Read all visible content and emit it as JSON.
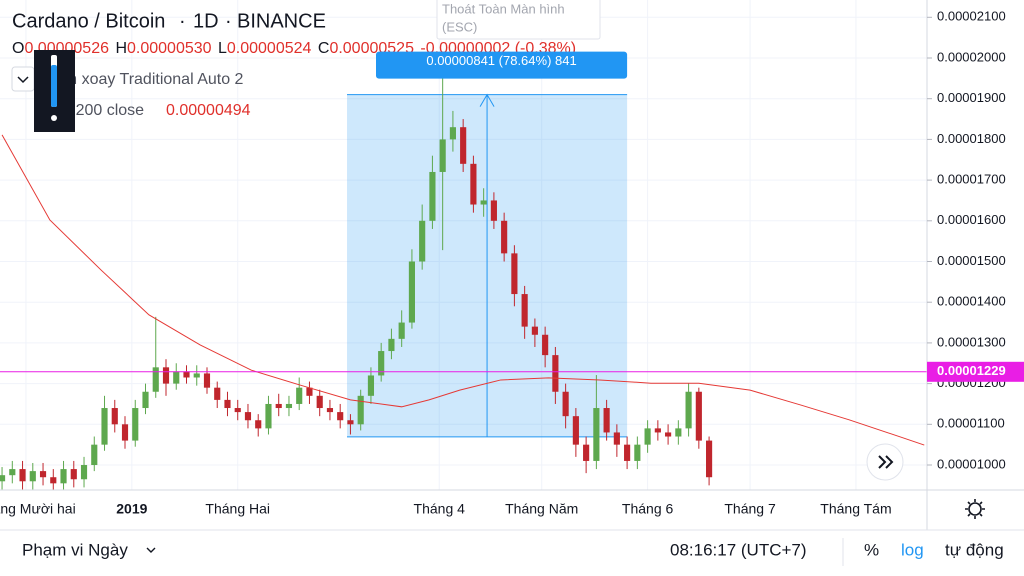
{
  "chart_data": {
    "type": "candlestick",
    "title": "Cardano / Bitcoin",
    "interval": "1D",
    "exchange": "BINANCE",
    "x": [
      -7,
      -4,
      -1,
      2,
      5,
      8,
      11,
      14,
      17,
      20,
      23,
      26,
      29,
      32,
      35,
      38,
      41,
      44,
      47,
      50,
      53,
      56,
      59,
      62,
      65,
      68,
      71,
      74,
      77,
      80,
      83,
      86,
      89,
      92,
      95,
      98,
      101,
      104,
      107,
      110,
      113,
      116,
      119,
      122,
      125,
      128,
      131,
      134,
      137,
      140,
      143,
      146,
      149,
      152,
      155,
      158,
      161,
      164,
      167,
      170,
      173,
      176,
      179,
      182,
      185,
      188,
      191,
      194,
      197,
      200
    ],
    "open": [
      9.6e-06,
      9.75e-06,
      9.9e-06,
      9.6e-06,
      9.85e-06,
      9.7e-06,
      9.55e-06,
      9.9e-06,
      9.65e-06,
      1e-05,
      1.05e-05,
      1.14e-05,
      1.1e-05,
      1.06e-05,
      1.14e-05,
      1.18e-05,
      1.24e-05,
      1.2e-05,
      1.23e-05,
      1.215e-05,
      1.225e-05,
      1.19e-05,
      1.16e-05,
      1.14e-05,
      1.13e-05,
      1.11e-05,
      1.09e-05,
      1.15e-05,
      1.14e-05,
      1.15e-05,
      1.19e-05,
      1.17e-05,
      1.14e-05,
      1.13e-05,
      1.11e-05,
      1.1e-05,
      1.17e-05,
      1.22e-05,
      1.28e-05,
      1.31e-05,
      1.35e-05,
      1.5e-05,
      1.6e-05,
      1.72e-05,
      1.8e-05,
      1.83e-05,
      1.74e-05,
      1.64e-05,
      1.65e-05,
      1.6e-05,
      1.52e-05,
      1.42e-05,
      1.34e-05,
      1.32e-05,
      1.27e-05,
      1.18e-05,
      1.12e-05,
      1.05e-05,
      1.01e-05,
      1.14e-05,
      1.08e-05,
      1.05e-05,
      1.01e-05,
      1.05e-05,
      1.09e-05,
      1.08e-05,
      1.07e-05,
      1.09e-05,
      1.18e-05,
      1.06e-05
    ],
    "high": [
      9.95e-06,
      1.01e-05,
      1.01e-05,
      1.005e-05,
      1.005e-05,
      9.9e-06,
      1.01e-05,
      1.01e-05,
      1.02e-05,
      1.07e-05,
      1.17e-05,
      1.16e-05,
      1.12e-05,
      1.16e-05,
      1.2e-05,
      1.364e-05,
      1.26e-05,
      1.25e-05,
      1.245e-05,
      1.245e-05,
      1.24e-05,
      1.205e-05,
      1.18e-05,
      1.16e-05,
      1.15e-05,
      1.125e-05,
      1.17e-05,
      1.175e-05,
      1.17e-05,
      1.215e-05,
      1.205e-05,
      1.185e-05,
      1.16e-05,
      1.15e-05,
      1.125e-05,
      1.185e-05,
      1.24e-05,
      1.3e-05,
      1.335e-05,
      1.38e-05,
      1.53e-05,
      1.64e-05,
      1.76e-05,
      1.958e-05,
      1.87e-05,
      1.85e-05,
      1.76e-05,
      1.68e-05,
      1.67e-05,
      1.62e-05,
      1.54e-05,
      1.44e-05,
      1.36e-05,
      1.34e-05,
      1.29e-05,
      1.2e-05,
      1.14e-05,
      1.07e-05,
      1.221e-05,
      1.16e-05,
      1.1e-05,
      1.07e-05,
      1.07e-05,
      1.11e-05,
      1.11e-05,
      1.1e-05,
      1.11e-05,
      1.201e-05,
      1.19e-05,
      1.07e-05
    ],
    "low": [
      9.4e-06,
      9.55e-06,
      9.4e-06,
      9.4e-06,
      9.5e-06,
      9.35e-06,
      9.4e-06,
      9.45e-06,
      9.45e-06,
      9.85e-06,
      1.035e-05,
      1.08e-05,
      1.04e-05,
      1.045e-05,
      1.125e-05,
      1.165e-05,
      1.17e-05,
      1.185e-05,
      1.2e-05,
      1.195e-05,
      1.175e-05,
      1.14e-05,
      1.12e-05,
      1.11e-05,
      1.09e-05,
      1.07e-05,
      1.075e-05,
      1.12e-05,
      1.12e-05,
      1.135e-05,
      1.15e-05,
      1.12e-05,
      1.11e-05,
      1.09e-05,
      1.075e-05,
      1.085e-05,
      1.15e-05,
      1.205e-05,
      1.26e-05,
      1.29e-05,
      1.335e-05,
      1.48e-05,
      1.58e-05,
      1.528e-05,
      1.77e-05,
      1.72e-05,
      1.62e-05,
      1.61e-05,
      1.58e-05,
      1.5e-05,
      1.39e-05,
      1.31e-05,
      1.29e-05,
      1.24e-05,
      1.15e-05,
      1.09e-05,
      1.02e-05,
      9.8e-06,
      9.9e-06,
      1.06e-05,
      1.02e-05,
      9.9e-06,
      9.9e-06,
      1.03e-05,
      1.06e-05,
      1.05e-05,
      1.05e-05,
      1.07e-05,
      1.04e-05,
      9.5e-06
    ],
    "close": [
      9.75e-06,
      9.9e-06,
      9.6e-06,
      9.85e-06,
      9.7e-06,
      9.55e-06,
      9.9e-06,
      9.65e-06,
      1e-05,
      1.05e-05,
      1.14e-05,
      1.1e-05,
      1.06e-05,
      1.14e-05,
      1.18e-05,
      1.24e-05,
      1.2e-05,
      1.23e-05,
      1.215e-05,
      1.225e-05,
      1.19e-05,
      1.16e-05,
      1.14e-05,
      1.13e-05,
      1.11e-05,
      1.09e-05,
      1.15e-05,
      1.14e-05,
      1.15e-05,
      1.19e-05,
      1.17e-05,
      1.14e-05,
      1.13e-05,
      1.11e-05,
      1.1e-05,
      1.17e-05,
      1.22e-05,
      1.28e-05,
      1.31e-05,
      1.35e-05,
      1.5e-05,
      1.6e-05,
      1.72e-05,
      1.8e-05,
      1.83e-05,
      1.74e-05,
      1.64e-05,
      1.65e-05,
      1.6e-05,
      1.52e-05,
      1.42e-05,
      1.34e-05,
      1.32e-05,
      1.27e-05,
      1.18e-05,
      1.12e-05,
      1.05e-05,
      1.01e-05,
      1.14e-05,
      1.08e-05,
      1.05e-05,
      1.01e-05,
      1.05e-05,
      1.09e-05,
      1.08e-05,
      1.07e-05,
      1.09e-05,
      1.18e-05,
      1.06e-05,
      9.7e-06
    ],
    "up_color": "#5ea84e",
    "down_color": "#c0262d",
    "ma": {
      "color": "#e53935",
      "x": [
        -7,
        7,
        22,
        36,
        51,
        66,
        80,
        95,
        110,
        118,
        127,
        139,
        153,
        168,
        183,
        197,
        212,
        227,
        241,
        256,
        263
      ],
      "values": [
        1.811e-05,
        1.602e-05,
        1.479e-05,
        1.369e-05,
        1.295e-05,
        1.233e-05,
        1.197e-05,
        1.16e-05,
        1.143e-05,
        1.16e-05,
        1.184e-05,
        1.209e-05,
        1.214e-05,
        1.209e-05,
        1.201e-05,
        1.201e-05,
        1.184e-05,
        1.147e-05,
        1.111e-05,
        1.069e-05,
        1.049e-05
      ]
    },
    "price_line": {
      "value": 1.229e-05,
      "label": "0.00001229",
      "color": "#e91ee5"
    },
    "measure": {
      "x": [
        94,
        176
      ],
      "y": [
        1.069e-05,
        1.91e-05
      ],
      "label": "0.00000841 (78.64%) 841",
      "color": "#2196f3"
    },
    "xlim": [
      -7.6,
      263.8
    ],
    "ylim": [
      9.386e-06,
      2.1425e-05
    ],
    "xticks": [
      {
        "value": 0,
        "label": "Tháng Mười hai"
      },
      {
        "value": 31,
        "label": "2019"
      },
      {
        "value": 62,
        "label": "Tháng Hai"
      },
      {
        "value": 121,
        "label": "Tháng 4"
      },
      {
        "value": 151,
        "label": "Tháng Năm"
      },
      {
        "value": 182,
        "label": "Tháng 6"
      },
      {
        "value": 212,
        "label": "Tháng 7"
      },
      {
        "value": 243,
        "label": "Tháng Tám"
      }
    ],
    "yticks": [
      {
        "value": 1e-05,
        "label": "0.00001000"
      },
      {
        "value": 1.1e-05,
        "label": "0.00001100"
      },
      {
        "value": 1.2e-05,
        "label": "0.00001200"
      },
      {
        "value": 1.3e-05,
        "label": "0.00001300"
      },
      {
        "value": 1.4e-05,
        "label": "0.00001400"
      },
      {
        "value": 1.5e-05,
        "label": "0.00001500"
      },
      {
        "value": 1.6e-05,
        "label": "0.00001600"
      },
      {
        "value": 1.7e-05,
        "label": "0.00001700"
      },
      {
        "value": 1.8e-05,
        "label": "0.00001800"
      },
      {
        "value": 1.9e-05,
        "label": "0.00001900"
      },
      {
        "value": 2e-05,
        "label": "0.00002000"
      },
      {
        "value": 2.1e-05,
        "label": "0.00002100"
      }
    ],
    "grid": true
  },
  "legend": {
    "open_label": "O",
    "open": "0.00000526",
    "high_label": "H",
    "high": "0.00000530",
    "low_label": "L",
    "low": "0.00000524",
    "close_label": "C",
    "close": "0.00000525",
    "change": "-0.00000002 (-0.38%)",
    "style": "Làm xoay Traditional Auto 2",
    "ma": "MA 200 close",
    "ma_value": "0.00000494"
  },
  "tooltip": {
    "text": "Thoát Toàn Màn hình",
    "shortcut": "(ESC)"
  },
  "toolbar": {
    "range": "Phạm vi Ngày",
    "time": "08:16:17 (UTC+7)",
    "percent": "%",
    "log": "log",
    "auto": "tự động"
  }
}
